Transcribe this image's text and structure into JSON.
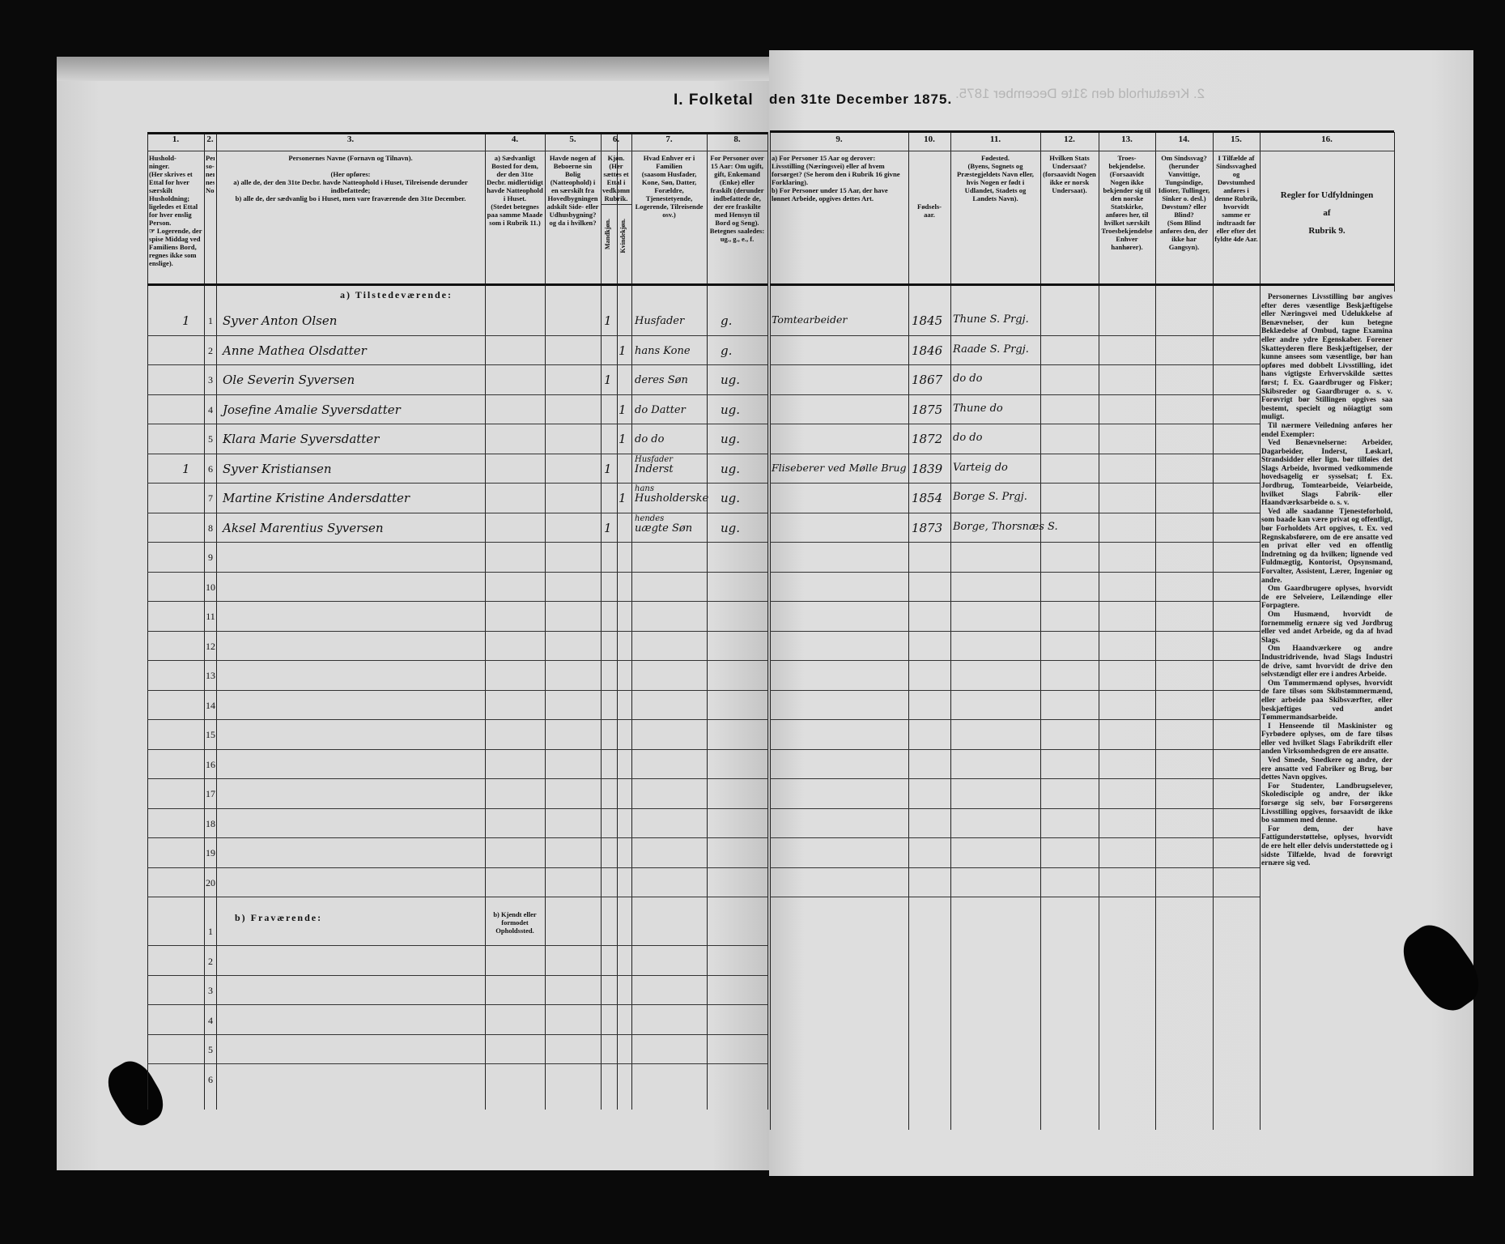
{
  "title": {
    "left": "I. Folketal",
    "right": "den 31te December 1875.",
    "mirrored": "2. Kreaturhold den 31te December 1875."
  },
  "columns": [
    {
      "num": "1.",
      "text": "Hushold-\nninger.\n(Her skrives et Ettal for hver særskilt Husholdning; ligeledes et Ettal for hver enslig Person.\n☞ Logerende, der spise Middag ved Familiens Bord, regnes ikke som enslige)."
    },
    {
      "num": "2.",
      "text": "Per-\nso-\nner-\nnes\nNo."
    },
    {
      "num": "3.",
      "text": "Personernes Navne (Fornavn og Tilnavn).\n\n(Her opføres:\na) alle de, der den 31te Decbr. havde Natteophold i Huset, Tilreisende derunder indbefattede;\nb) alle de, der sædvanlig bo i Huset, men vare fraværende den 31te December."
    },
    {
      "num": "4.",
      "text": "a) Sædvanligt Bosted for dem, der den 31te Decbr. midlertidigt havde Natteophold i Huset.\n(Stedet betegnes paa samme Maade som i Rubrik 11.)"
    },
    {
      "num": "5.",
      "text": "Havde nogen af Beboerne sin Bolig (Natteophold) i en særskilt fra Hovedbygningen adskilt Side- eller Udhusbygning? og da i hvilken?"
    },
    {
      "num": "6.",
      "text": "Kjøn.\n(Her sættes et Ettal i vedkommende Rubrik.",
      "sub": [
        "Mandkjøn.",
        "Kvindekjøn."
      ]
    },
    {
      "num": "7.",
      "text": "Hvad Enhver er i Familien\n(saasom Husfader, Kone, Søn, Datter, Forældre, Tjenestetyende, Logerende, Tilreisende osv.)"
    },
    {
      "num": "8.",
      "text": "For Personer over 15 Aar: Om ugift, gift, Enkemand (Enke) eller fraskilt (derunder indbefattede de, der ere fraskilte med Hensyn til Bord og Seng).\nBetegnes saaledes: ug., g., e., f."
    },
    {
      "num": "9.",
      "text": "a) For Personer 15 Aar og derover: Livsstilling (Næringsvei) eller af hvem forsørget? (Se herom den i Rubrik 16 givne Forklaring).\nb) For Personer under 15 Aar, der have lønnet Arbeide, opgives dettes Art."
    },
    {
      "num": "10.",
      "text": "Fødsels-\naar."
    },
    {
      "num": "11.",
      "text": "Fødested.\n(Byens, Sognets og Præstegjeldets Navn eller, hvis Nogen er født i Udlandet, Stadets og Landets Navn)."
    },
    {
      "num": "12.",
      "text": "Hvilken Stats Undersaat?\n(forsaavidt Nogen ikke er norsk Undersaat)."
    },
    {
      "num": "13.",
      "text": "Troes-\nbekjendelse.\n(Forsaavidt Nogen ikke bekjender sig til den norske Statskirke, anføres her, til hvilket særskilt Troesbekjendelse Enhver hanhører)."
    },
    {
      "num": "14.",
      "text": "Om Sindssvag? (herunder Vanvittige, Tungsindige, Idioter, Tullinger, Sinker o. desl.)\nDøvstum? eller Blind?\n(Som Blind anføres den, der ikke har Gangsyn)."
    },
    {
      "num": "15.",
      "text": "I Tilfælde af Sindssvaghed og Døvstumhed anføres i denne Rubrik, hvorvidt samme er indtraadt før eller efter det fyldte 4de Aar."
    },
    {
      "num": "16.",
      "text": "Regler for Udfyldningen\naf\nRubrik 9."
    }
  ],
  "sections": {
    "present": "a) Tilstedeværende:",
    "absent": "b) Fraværende:",
    "absent_place": "b) Kjendt eller formodet Opholdssted."
  },
  "present_rows": [
    {
      "no": "1",
      "household": "1",
      "name": "Syver Anton Olsen",
      "male": "1",
      "female": "",
      "relation": "Husfader",
      "relation_note": "",
      "marital": "g.",
      "occupation": "Tomtearbeider",
      "year": "1845",
      "birthplace": "Thune S. Prgj."
    },
    {
      "no": "2",
      "household": "",
      "name": "Anne Mathea Olsdatter",
      "male": "",
      "female": "1",
      "relation": "hans Kone",
      "relation_note": "",
      "marital": "g.",
      "occupation": "",
      "year": "1846",
      "birthplace": "Raade S. Prgj."
    },
    {
      "no": "3",
      "household": "",
      "name": "Ole Severin Syversen",
      "male": "1",
      "female": "",
      "relation": "deres Søn",
      "relation_note": "",
      "marital": "ug.",
      "occupation": "",
      "year": "1867",
      "birthplace": "do   do"
    },
    {
      "no": "4",
      "household": "",
      "name": "Josefine Amalie Syversdatter",
      "male": "",
      "female": "1",
      "relation": "do Datter",
      "relation_note": "",
      "marital": "ug.",
      "occupation": "",
      "year": "1875",
      "birthplace": "Thune do"
    },
    {
      "no": "5",
      "household": "",
      "name": "Klara Marie Syversdatter",
      "male": "",
      "female": "1",
      "relation": "do   do",
      "relation_note": "",
      "marital": "ug.",
      "occupation": "",
      "year": "1872",
      "birthplace": "do   do"
    },
    {
      "no": "6",
      "household": "1",
      "name": "Syver Kristiansen",
      "male": "1",
      "female": "",
      "relation": "Inderst",
      "relation_note": "Husfader",
      "marital": "ug.",
      "occupation": "Fliseberer ved Mølle Brug",
      "year": "1839",
      "birthplace": "Varteig do"
    },
    {
      "no": "7",
      "household": "",
      "name": "Martine Kristine Andersdatter",
      "male": "",
      "female": "1",
      "relation": "Husholderske",
      "relation_note": "hans",
      "marital": "ug.",
      "occupation": "",
      "year": "1854",
      "birthplace": "Borge S. Prgj."
    },
    {
      "no": "8",
      "household": "",
      "name": "Aksel Marentius Syversen",
      "male": "1",
      "female": "",
      "relation": "uægte Søn",
      "relation_note": "hendes",
      "marital": "ug.",
      "occupation": "",
      "year": "1873",
      "birthplace": "Borge, Thorsnæs S."
    },
    {
      "no": "9"
    },
    {
      "no": "10"
    },
    {
      "no": "11"
    },
    {
      "no": "12"
    },
    {
      "no": "13"
    },
    {
      "no": "14"
    },
    {
      "no": "15"
    },
    {
      "no": "16"
    },
    {
      "no": "17"
    },
    {
      "no": "18"
    },
    {
      "no": "19"
    },
    {
      "no": "20"
    }
  ],
  "absent_rows": [
    {
      "no": "1"
    },
    {
      "no": "2"
    },
    {
      "no": "3"
    },
    {
      "no": "4"
    },
    {
      "no": "5"
    },
    {
      "no": "6"
    }
  ],
  "rules": [
    {
      "text": "Personernes Livsstilling bør angives efter deres væsentlige Beskjæftigelse eller Næringsvei med Udelukkelse af Benævnelser, der kun betegne Beklædelse af Ombud, tagne Examina eller andre ydre Egenskaber. Forener Skatteyderen flere Beskjæftigelser, der kunne ansees som væsentlige, bør han opføres med dobbelt Livsstilling, idet hans vigtigste Erhvervskilde sættes først; f. Ex. Gaardbruger og Fisker; Skibsreder og Gaardbruger o. s. v. Forøvrigt bør Stillingen opgives saa bestemt, specielt og nöiagtigt som muligt."
    },
    {
      "text": "Til nærmere Veiledning anføres her endel Exempler:"
    },
    {
      "text": "Ved Benævnelserne: Arbeider, Dagarbeider, Inderst, Løskarl, Strandsidder eller lign. bør tilføies det Slags Arbeide, hvormed vedkommende hovedsagelig er sysselsat; f. Ex. Jordbrug, Tomtearbeide, Veiarbeide, hvilket Slags Fabrik- eller Haandværksarbeide o. s. v."
    },
    {
      "text": "Ved alle saadanne Tjenesteforhold, som baade kan være privat og offentligt, bør Forholdets Art opgives, t. Ex. ved Regnskabsførere, om de ere ansatte ved en privat eller ved en offentlig Indretning og da hvilken; lignende ved Fuldmægtig, Kontorist, Opsynsmand, Forvalter, Assistent, Lærer, Ingeniør og andre."
    },
    {
      "text": "Om Gaardbrugere oplyses, hvorvidt de ere Selveiere, Leilændinge eller Forpagtere."
    },
    {
      "text": "Om Husmænd, hvorvidt de fornemmelig ernære sig ved Jordbrug eller ved andet Arbeide, og da af hvad Slags."
    },
    {
      "text": "Om Haandværkere og andre Industridrivende, hvad Slags Industri de drive, samt hvorvidt de drive den selvstændigt eller ere i andres Arbeide."
    },
    {
      "text": "Om Tømmermænd oplyses, hvorvidt de fare tilsøs som Skibstømmermænd, eller arbeide paa Skibsværfter, eller beskjæftiges ved andet Tømmermandsarbeide."
    },
    {
      "text": "I Henseende til Maskinister og Fyrbødere oplyses, om de fare tilsøs eller ved hvilket Slags Fabrikdrift eller anden Virksomhedsgren de ere ansatte."
    },
    {
      "text": "Ved Smede, Snedkere og andre, der ere ansatte ved Fabriker og Brug, bør dettes Navn opgives."
    },
    {
      "text": "For Studenter, Landbrugselever, Skoledisciple og andre, der ikke forsørge sig selv, bør Forsørgerens Livsstilling opgives, forsaavidt de ikke bo sammen med denne."
    },
    {
      "text": "For dem, der have Fattigunderstøttelse, oplyses, hvorvidt de ere helt eller delvis understøttede og i sidste Tilfælde, hvad de forøvrigt ernære sig ved."
    }
  ],
  "colors": {
    "paper": "#dadada",
    "ink": "#111111",
    "background": "#0a0a0a"
  }
}
